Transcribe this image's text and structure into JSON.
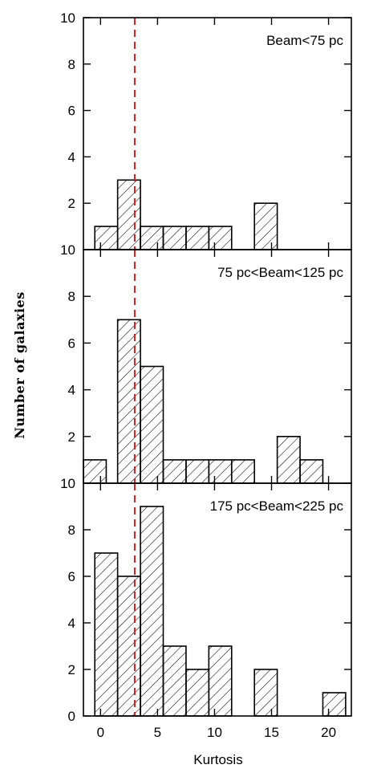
{
  "chart_data": {
    "type": "bar",
    "xlabel": "Kurtosis",
    "ylabel": "Number of galaxies",
    "xlim": [
      -1.5,
      22
    ],
    "bin_width": 2,
    "x_ticks": [
      0,
      5,
      10,
      15,
      20
    ],
    "reference_line": {
      "x": 3,
      "style": "dashed",
      "color": "#d42020"
    },
    "bar_fill": "hatched",
    "panels": [
      {
        "label": "Beam<75 pc",
        "ylim": [
          0,
          10
        ],
        "y_ticks": [
          2,
          4,
          6,
          8,
          10
        ],
        "bin_starts": [
          -0.5,
          1.5,
          3.5,
          5.5,
          7.5,
          9.5,
          13.5
        ],
        "counts": [
          1,
          3,
          1,
          1,
          1,
          1,
          2
        ]
      },
      {
        "label": "75 pc<Beam<125 pc",
        "ylim": [
          0,
          10
        ],
        "y_ticks": [
          2,
          4,
          6,
          8,
          10
        ],
        "bin_starts": [
          -1.5,
          1.5,
          3.5,
          5.5,
          7.5,
          9.5,
          11.5,
          15.5,
          17.5
        ],
        "counts": [
          1,
          7,
          5,
          1,
          1,
          1,
          1,
          2,
          1
        ]
      },
      {
        "label": "175 pc<Beam<225 pc",
        "ylim": [
          0,
          10
        ],
        "y_ticks": [
          0,
          2,
          4,
          6,
          8,
          10
        ],
        "bin_starts": [
          -0.5,
          1.5,
          3.5,
          5.5,
          7.5,
          9.5,
          13.5,
          19.5
        ],
        "counts": [
          7,
          6,
          9,
          3,
          2,
          3,
          2,
          1
        ]
      }
    ]
  }
}
